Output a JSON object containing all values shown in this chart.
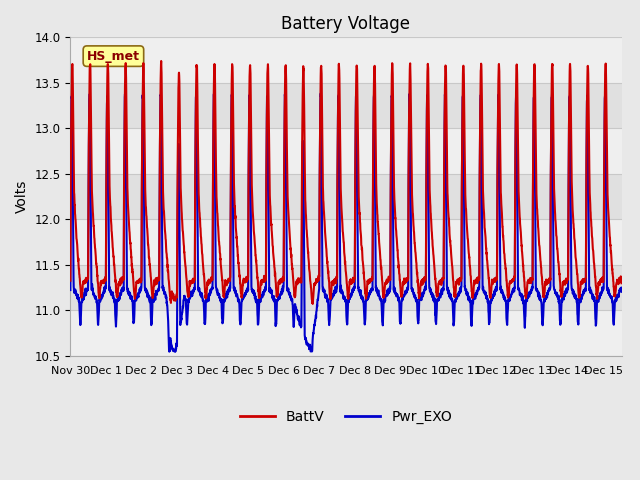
{
  "title": "Battery Voltage",
  "ylabel": "Volts",
  "ylim": [
    10.5,
    14.0
  ],
  "yticks": [
    10.5,
    11.0,
    11.5,
    12.0,
    12.5,
    13.0,
    13.5,
    14.0
  ],
  "xtick_labels": [
    "Nov 30",
    "Dec 1",
    "Dec 2",
    "Dec 3",
    "Dec 4",
    "Dec 5",
    "Dec 6",
    "Dec 7",
    "Dec 8",
    "Dec 9",
    "Dec 10",
    "Dec 11",
    "Dec 12",
    "Dec 13",
    "Dec 14",
    "Dec 15"
  ],
  "line1_color": "#CC0000",
  "line2_color": "#0000CC",
  "line1_label": "BattV",
  "line2_label": "Pwr_EXO",
  "line_width": 1.5,
  "fig_bg_color": "#e8e8e8",
  "plot_bg_color": "#e0e0e0",
  "grid_color": "#c8c8c8",
  "band_color": "#d0d0d0",
  "annotation_text": "HS_met",
  "title_fontsize": 12,
  "label_fontsize": 10,
  "tick_fontsize": 8.5
}
